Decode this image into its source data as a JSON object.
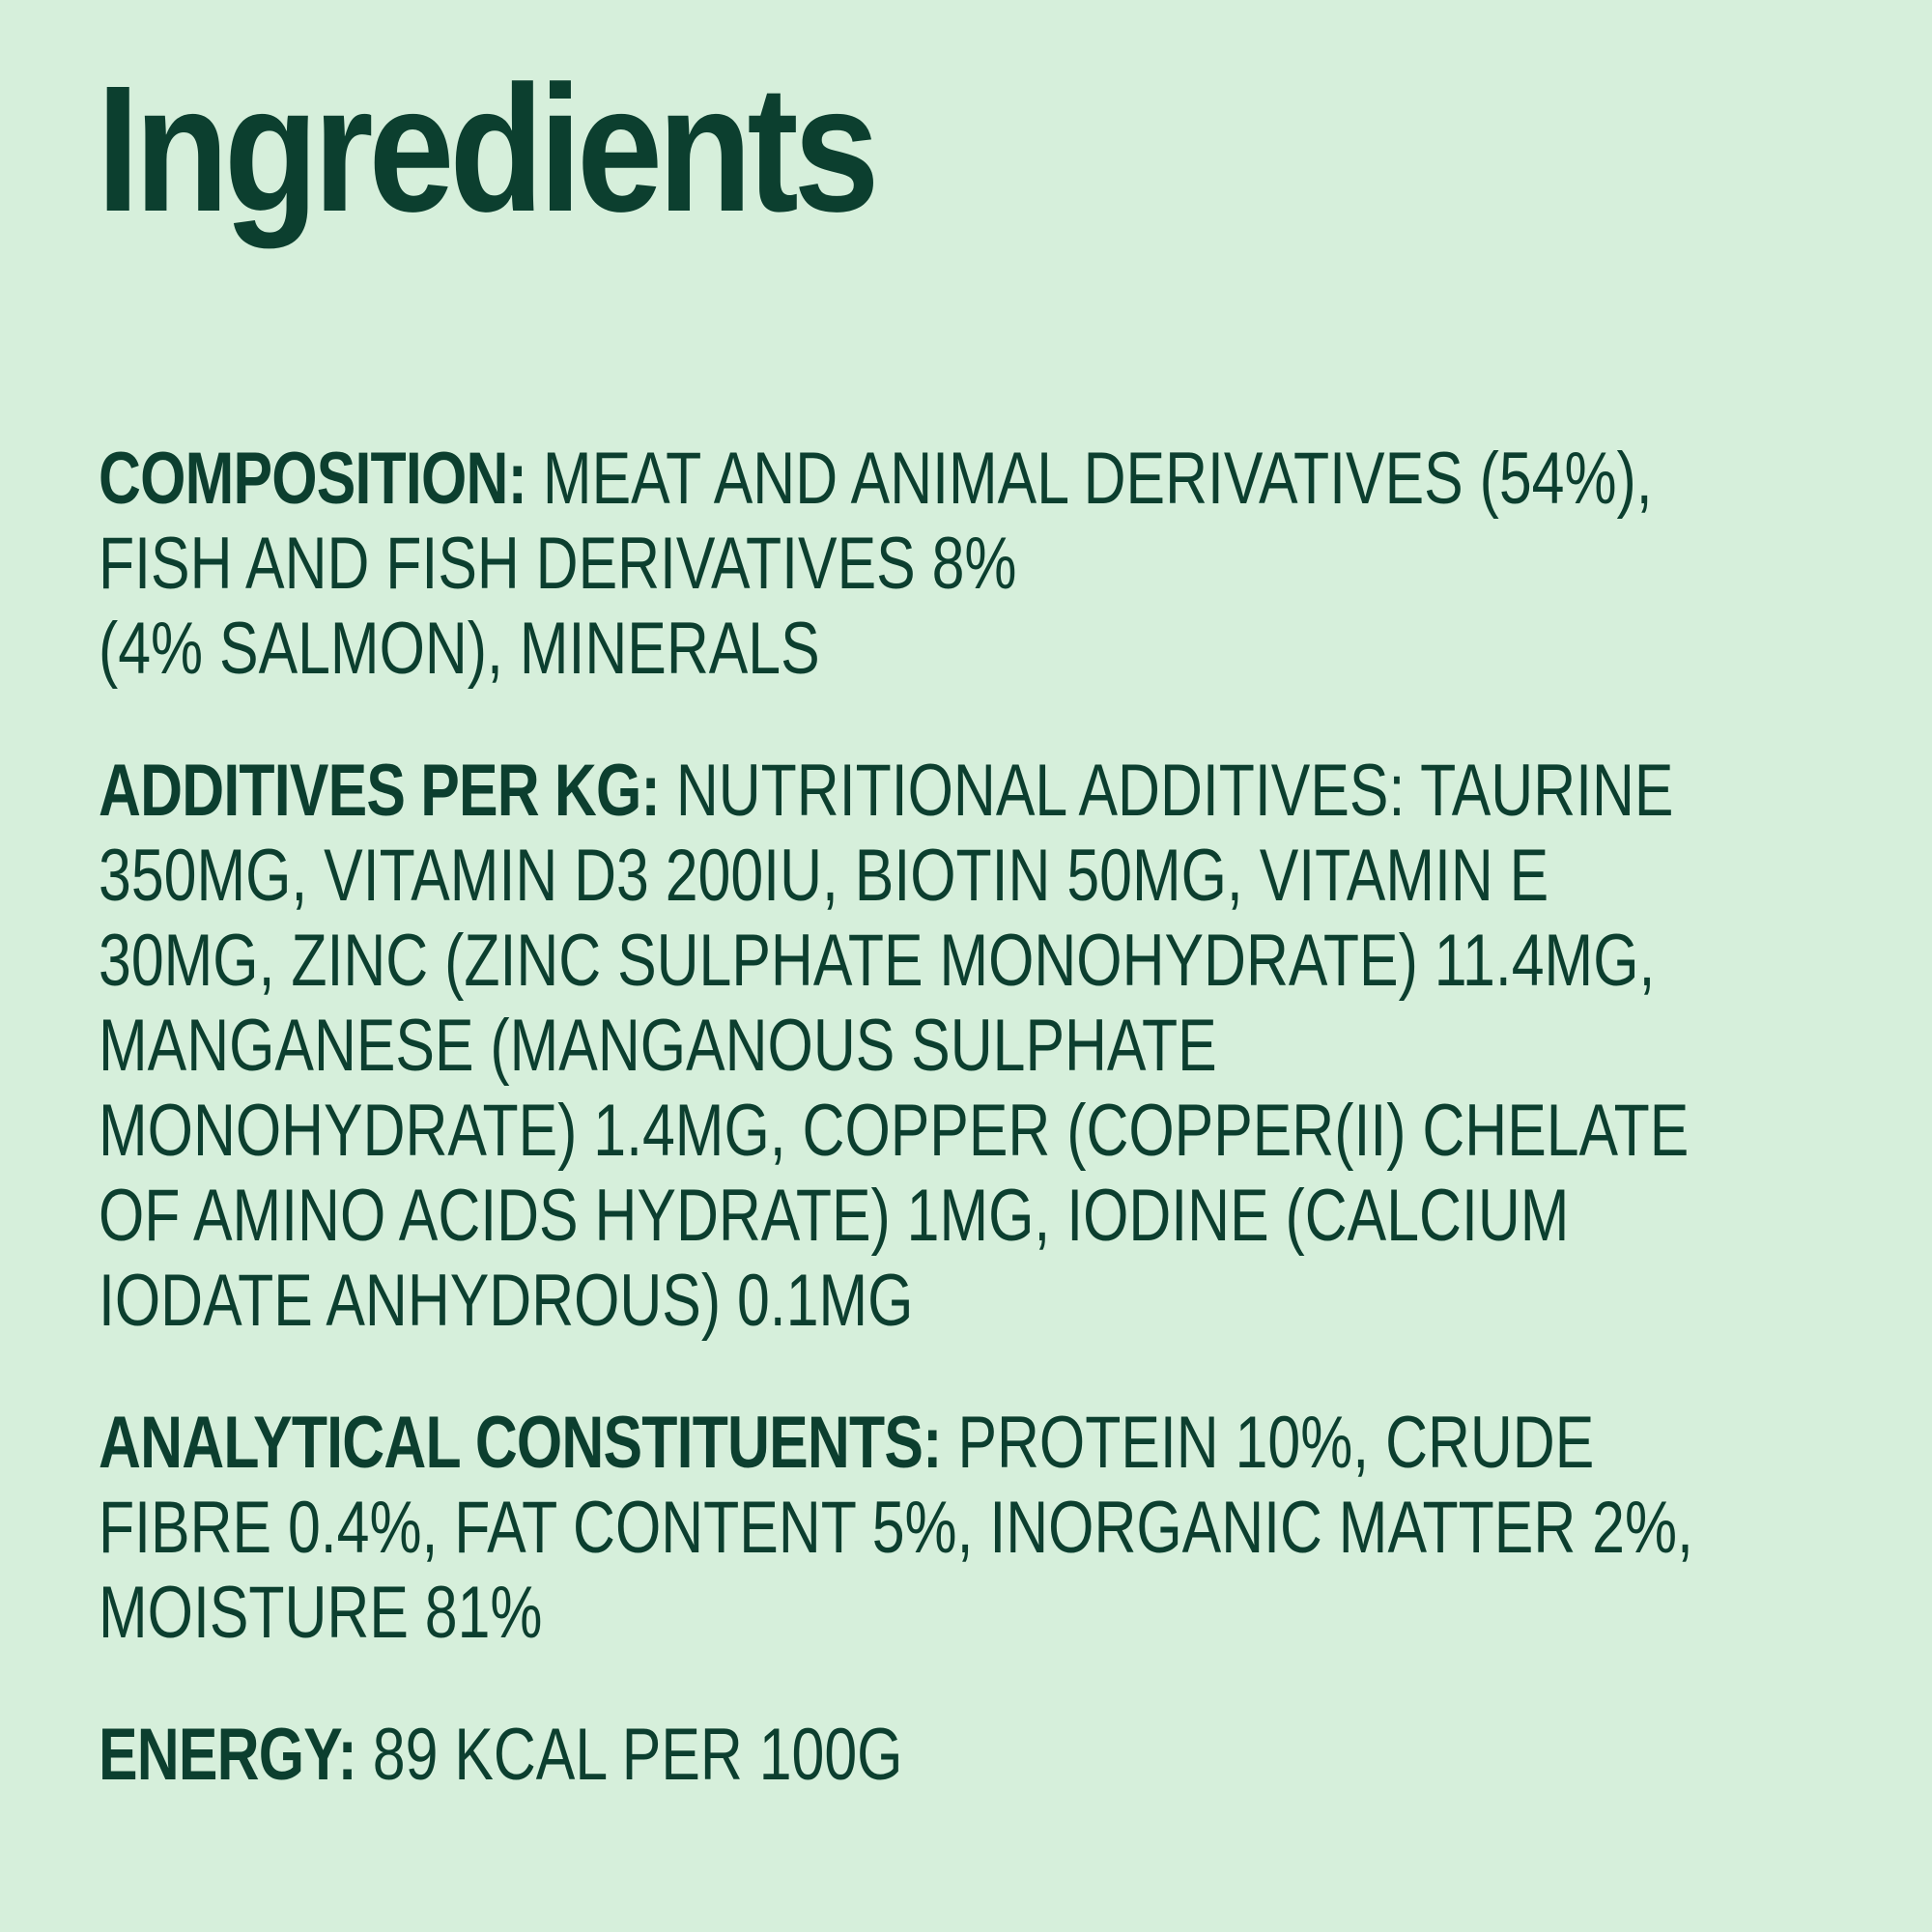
{
  "title": "Ingredients",
  "colors": {
    "background": "#d6efdb",
    "text": "#0c3f2f"
  },
  "sections": [
    {
      "label": "COMPOSITION:",
      "lines": [
        " MEAT AND ANIMAL DERIVATIVES (54%),",
        "FISH AND FISH DERIVATIVES 8%",
        "(4% SALMON), MINERALS"
      ]
    },
    {
      "label": "ADDITIVES PER KG:",
      "lines": [
        " NUTRITIONAL ADDITIVES: TAURINE",
        "350MG, VITAMIN D3 200IU, BIOTIN 50MG, VITAMIN E",
        "30MG, ZINC (ZINC SULPHATE MONOHYDRATE) 11.4MG,",
        "MANGANESE (MANGANOUS SULPHATE",
        "MONOHYDRATE) 1.4MG, COPPER (COPPER(II) CHELATE",
        "OF AMINO ACIDS HYDRATE) 1MG, IODINE (CALCIUM",
        "IODATE ANHYDROUS) 0.1MG"
      ]
    },
    {
      "label": "ANALYTICAL CONSTITUENTS:",
      "lines": [
        " PROTEIN 10%, CRUDE",
        "FIBRE 0.4%, FAT CONTENT 5%, INORGANIC MATTER 2%,",
        "MOISTURE 81%"
      ]
    },
    {
      "label": "ENERGY:",
      "lines": [
        " 89 KCAL PER 100G"
      ]
    }
  ]
}
